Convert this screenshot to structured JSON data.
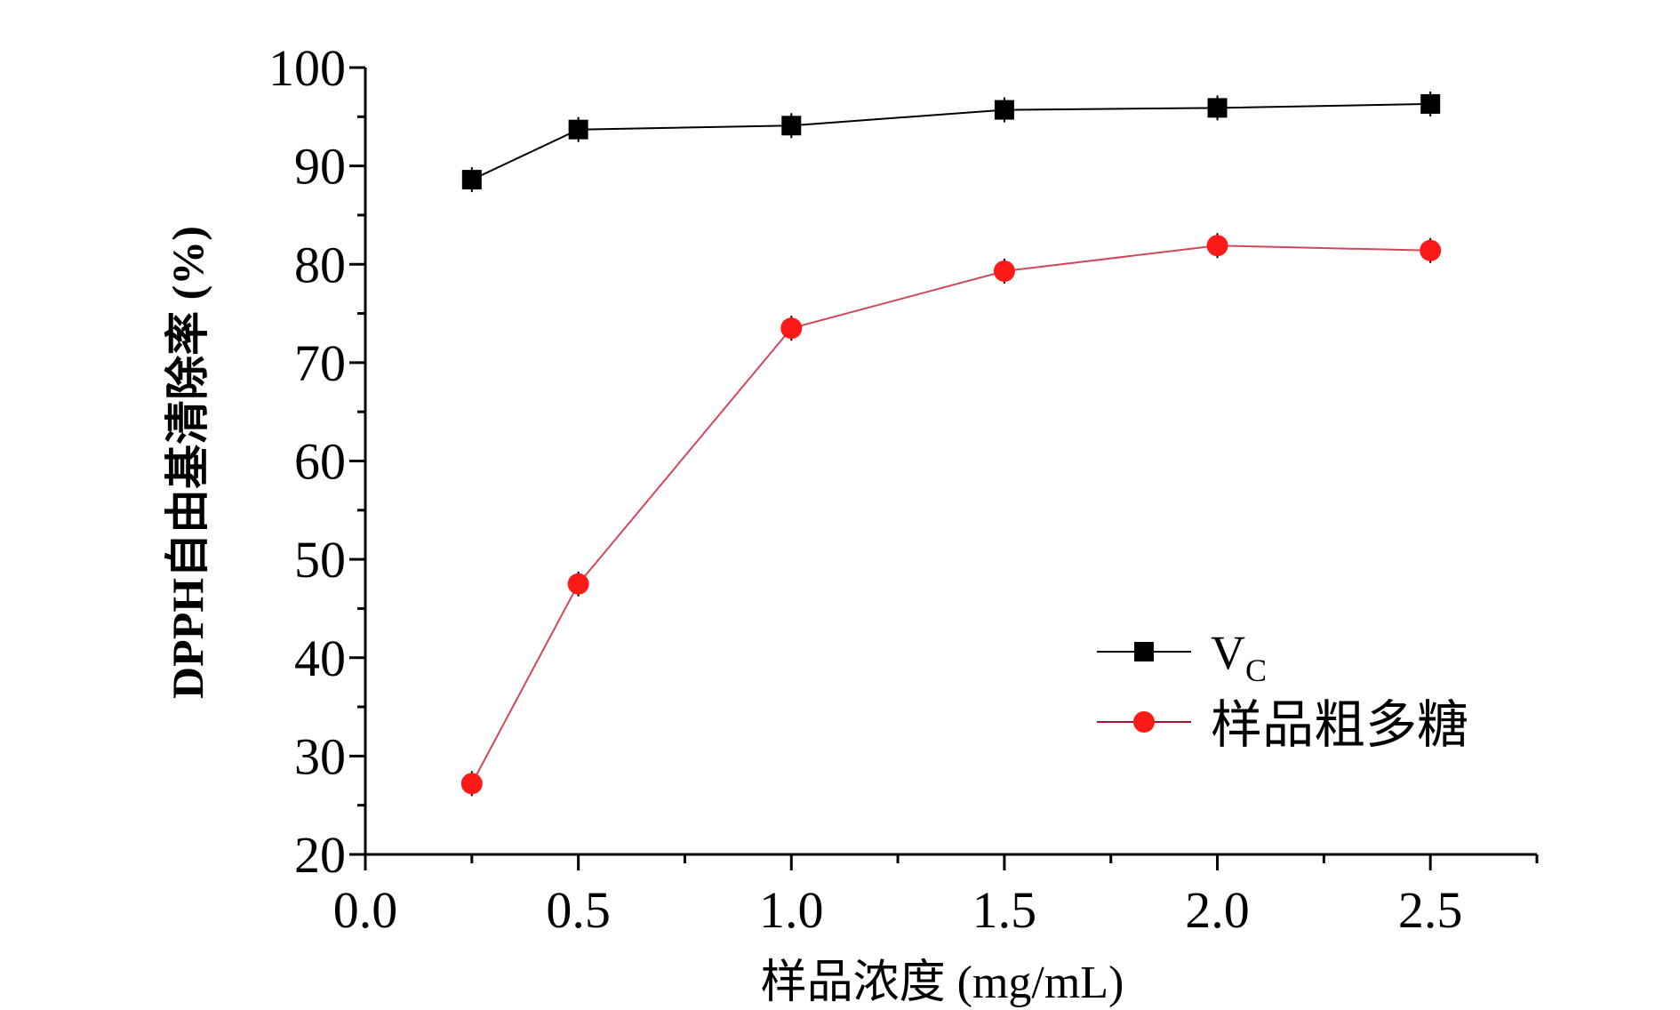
{
  "chart_data": {
    "type": "line",
    "title": "",
    "xlabel": "样品浓度 (mg/mL)",
    "ylabel": "DPPH自由基清除率 (%)",
    "xlim": [
      0,
      2.75
    ],
    "ylim": [
      20,
      100
    ],
    "x_ticks": [
      "0.0",
      "0.5",
      "1.0",
      "1.5",
      "2.0",
      "2.5"
    ],
    "y_ticks": [
      "20",
      "30",
      "40",
      "50",
      "60",
      "70",
      "80",
      "90",
      "100"
    ],
    "x": [
      0.25,
      0.5,
      1.0,
      1.5,
      2.0,
      2.5
    ],
    "grid": false,
    "legend_position": "bottom-right",
    "series": [
      {
        "name": "V",
        "name_sub": "C",
        "marker": "square",
        "color": "#000000",
        "values": [
          88.6,
          93.7,
          94.1,
          95.7,
          95.9,
          96.3
        ]
      },
      {
        "name": "样品粗多糖",
        "marker": "circle",
        "color": "#ff1a1a",
        "line_color": "#d0485a",
        "values": [
          27.2,
          47.5,
          73.5,
          79.3,
          81.9,
          81.4
        ]
      }
    ]
  }
}
